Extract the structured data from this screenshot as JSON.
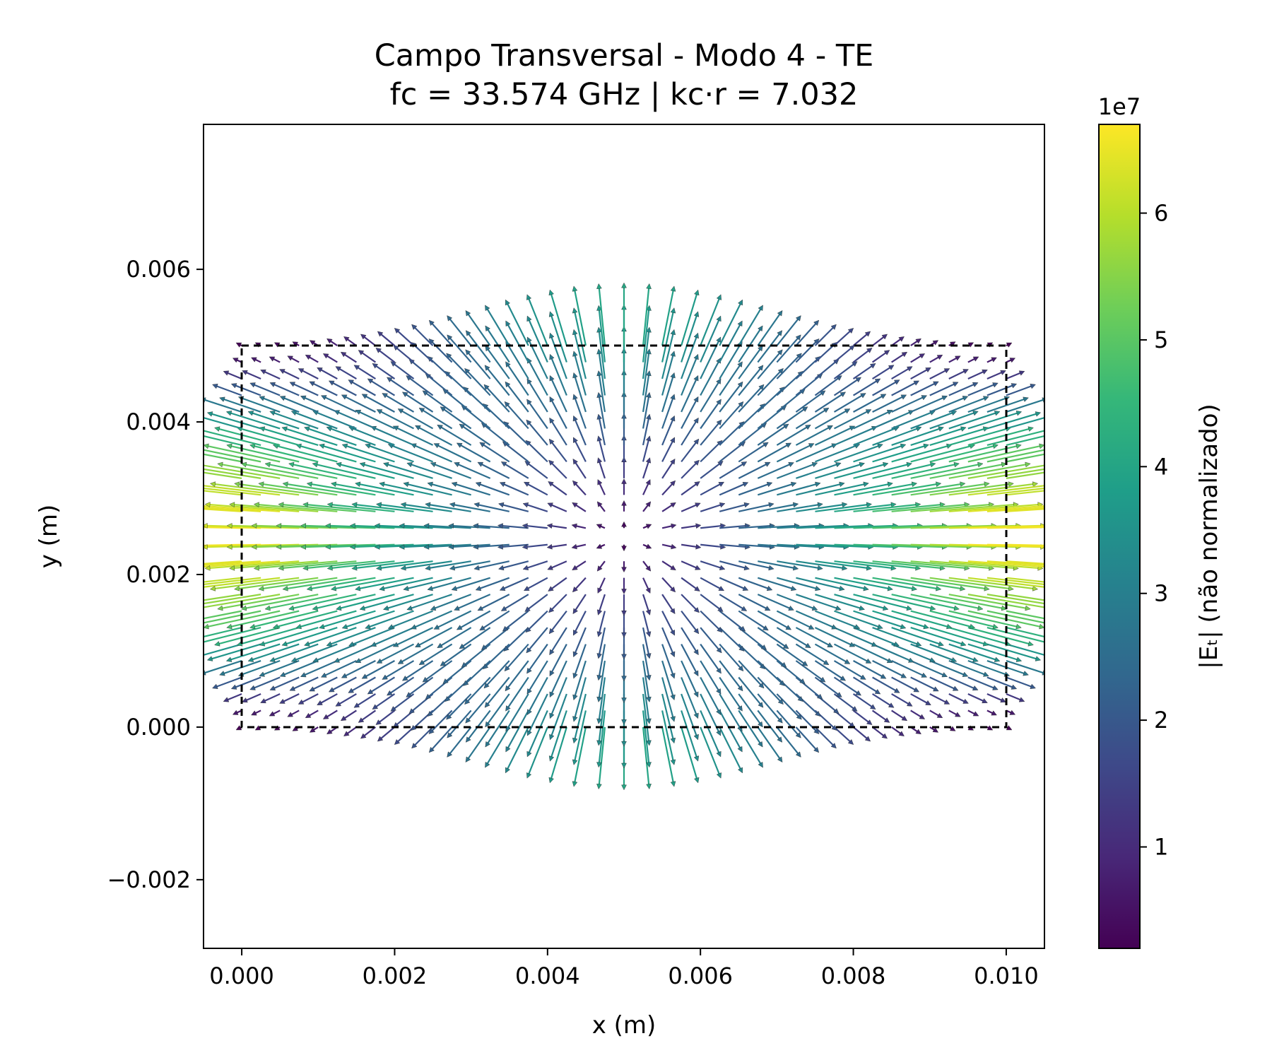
{
  "chart_data": {
    "type": "quiver",
    "title": "Campo Transversal - Modo 4 - TE",
    "subtitle": "fc = 33.574 GHz | kc·r = 7.032",
    "xlabel": "x (m)",
    "ylabel": "y (m)",
    "xlim": [
      -0.0005,
      0.0105
    ],
    "ylim": [
      -0.0029,
      0.0079
    ],
    "x_ticks": [
      {
        "value": 0.0,
        "label": "0.000"
      },
      {
        "value": 0.002,
        "label": "0.002"
      },
      {
        "value": 0.004,
        "label": "0.004"
      },
      {
        "value": 0.006,
        "label": "0.006"
      },
      {
        "value": 0.008,
        "label": "0.008"
      },
      {
        "value": 0.01,
        "label": "0.010"
      }
    ],
    "y_ticks": [
      {
        "value": -0.002,
        "label": "−0.002"
      },
      {
        "value": 0.0,
        "label": "0.000"
      },
      {
        "value": 0.002,
        "label": "0.002"
      },
      {
        "value": 0.004,
        "label": "0.004"
      },
      {
        "value": 0.006,
        "label": "0.006"
      }
    ],
    "guide_boundary": {
      "x": [
        0.0,
        0.01
      ],
      "y": [
        0.0,
        0.005
      ],
      "style": "dashed",
      "color": "#000000"
    },
    "field": {
      "grid_x": {
        "start": 0.0,
        "stop": 0.01,
        "count": 41
      },
      "grid_y": {
        "start": 0.0,
        "stop": 0.005,
        "count": 24
      },
      "source_center": [
        0.005,
        0.0025
      ],
      "direction": "radially outward from center",
      "magnitude_max": 66000000,
      "magnitude_min": 2000000
    },
    "colorbar": {
      "label": "|Eₜ| (não normalizado)",
      "multiplier_label": "1e7",
      "range": [
        0.2,
        6.7
      ],
      "ticks": [
        {
          "value": 1,
          "label": "1"
        },
        {
          "value": 2,
          "label": "2"
        },
        {
          "value": 3,
          "label": "3"
        },
        {
          "value": 4,
          "label": "4"
        },
        {
          "value": 5,
          "label": "5"
        },
        {
          "value": 6,
          "label": "6"
        }
      ],
      "colormap": "viridis",
      "stops": [
        "#440154",
        "#482878",
        "#3e4989",
        "#31688e",
        "#26828e",
        "#1f9e89",
        "#35b779",
        "#6ece58",
        "#b5de2b",
        "#fde725"
      ]
    },
    "grid": false,
    "legend": "none"
  }
}
